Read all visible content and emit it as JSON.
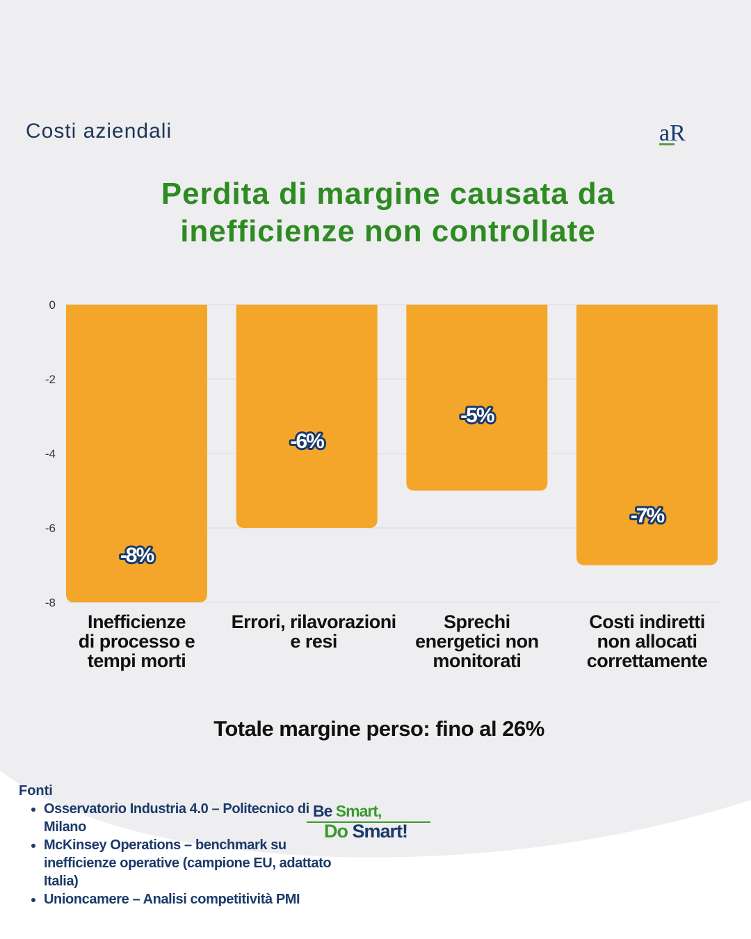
{
  "header": {
    "section": "Costi aziendali",
    "logo_text": "aR"
  },
  "title_lines": [
    "Perdita di margine causata da",
    "inefficienze non controllate"
  ],
  "chart_data": {
    "type": "bar",
    "categories": [
      [
        "Inefficienze",
        "di processo e",
        "tempi morti"
      ],
      [
        "Errori, rilavorazioni",
        "e resi"
      ],
      [
        "Sprechi",
        "energetici non",
        "monitorati"
      ],
      [
        "Costi indiretti",
        "non allocati",
        "correttamente"
      ]
    ],
    "values": [
      -8,
      -6,
      -5,
      -7
    ],
    "data_labels": [
      "-8%",
      "-6%",
      "-5%",
      "-7%"
    ],
    "ylim": [
      -8,
      0
    ],
    "yticks": [
      0,
      -2,
      -4,
      -6,
      -8
    ],
    "grid": true,
    "bar_color": "#f4a62a",
    "label_outline_color": "#1b3a6b"
  },
  "total": "Totale margine perso: fino al 26%",
  "sources": {
    "heading": "Fonti",
    "items": [
      "Osservatorio Industria 4.0 – Politecnico di Milano",
      "McKinsey Operations – benchmark su inefficienze operative (campione EU, adattato Italia)",
      "Unioncamere – Analisi competitività PMI"
    ]
  },
  "slogan": {
    "be": "Be",
    "smart1": "Smart,",
    "do": "Do",
    "smart2": "Smart!"
  },
  "colors": {
    "background": "#eeeef0",
    "title": "#2e8b22",
    "navy": "#1b3a6b"
  }
}
